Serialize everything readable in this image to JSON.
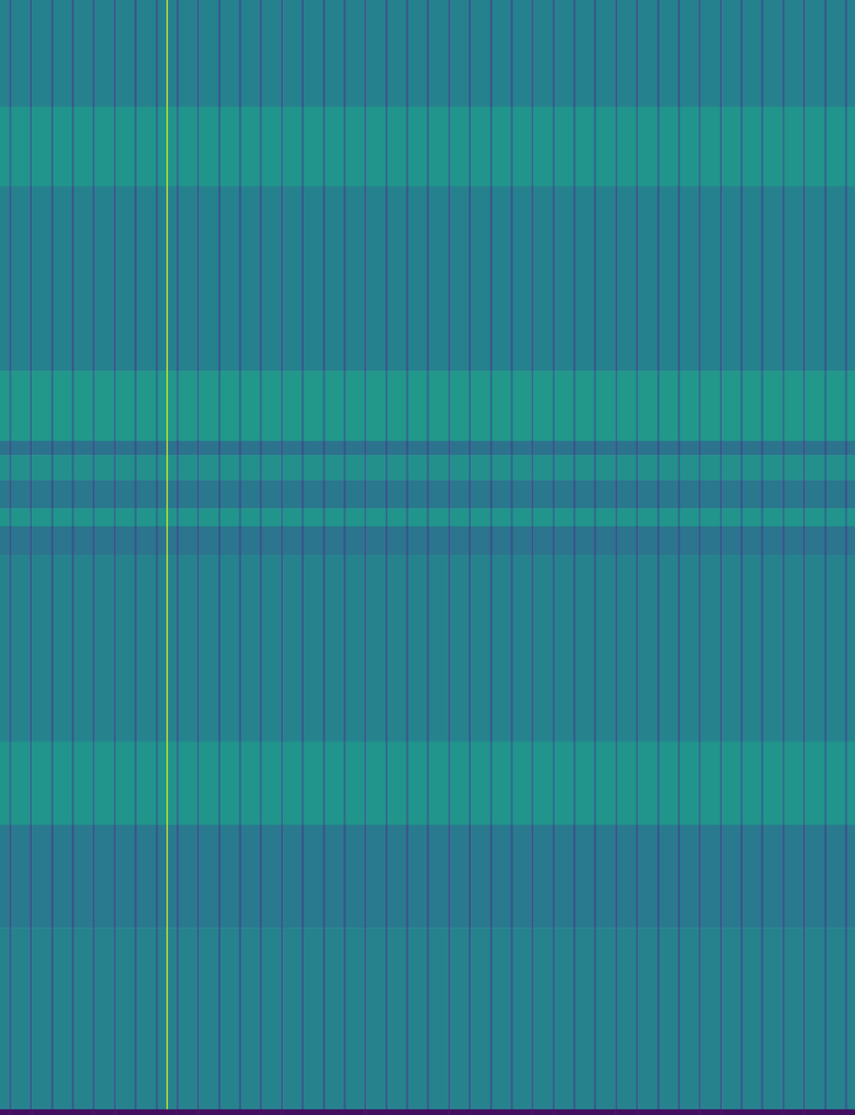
{
  "chart_data": {
    "type": "heatmap",
    "color": "viridis",
    "tick_labels": false,
    "grid": false,
    "xlim": [
      0,
      1202
    ],
    "ylim": [
      0,
      1568
    ],
    "zlim": [
      0,
      100
    ],
    "x_bins": [
      0,
      13,
      16,
      42,
      45,
      72,
      75,
      101,
      104,
      130,
      133,
      160,
      163,
      189,
      192,
      219,
      222,
      234,
      236,
      248,
      251,
      277,
      280,
      307,
      310,
      336,
      339,
      365,
      368,
      395,
      398,
      424,
      427,
      454,
      457,
      483,
      486,
      512,
      515,
      542,
      545,
      571,
      574,
      600,
      603,
      630,
      633,
      659,
      662,
      689,
      692,
      718,
      721,
      747,
      750,
      777,
      780,
      806,
      809,
      835,
      838,
      865,
      868,
      894,
      897,
      924,
      927,
      953,
      956,
      982,
      985,
      1012,
      1015,
      1041,
      1044,
      1070,
      1073,
      1100,
      1103,
      1129,
      1132,
      1159,
      1162,
      1188,
      1191,
      1202
    ],
    "y_bins": [
      0,
      150,
      262,
      522,
      620,
      640,
      675,
      715,
      740,
      780,
      1043,
      1160,
      1305,
      1560,
      1568
    ],
    "cells": [
      [
        44,
        28,
        44,
        28,
        44,
        28,
        44,
        28,
        44,
        28,
        44,
        28,
        44,
        28,
        44,
        28,
        44,
        90,
        44,
        28,
        44,
        28,
        44,
        28,
        44,
        28,
        44,
        28,
        44,
        28,
        44,
        28,
        44,
        28,
        44,
        28,
        44,
        28,
        44,
        28,
        44,
        28,
        44,
        28,
        44,
        28,
        44,
        28,
        44,
        28,
        44,
        28,
        44,
        28,
        44,
        28,
        44,
        28,
        44,
        28,
        44,
        28,
        44,
        28,
        44,
        28,
        44,
        28,
        44,
        28,
        44,
        28,
        44,
        28,
        44,
        28,
        44,
        28,
        44,
        28,
        44,
        28,
        44,
        28,
        44
      ],
      [
        52,
        34,
        52,
        34,
        52,
        34,
        52,
        34,
        52,
        34,
        52,
        34,
        52,
        34,
        52,
        34,
        52,
        90,
        52,
        34,
        52,
        34,
        52,
        34,
        52,
        34,
        52,
        34,
        52,
        34,
        52,
        34,
        52,
        34,
        52,
        34,
        52,
        34,
        52,
        34,
        52,
        34,
        52,
        34,
        52,
        34,
        52,
        34,
        52,
        34,
        52,
        34,
        52,
        34,
        52,
        34,
        52,
        34,
        52,
        34,
        52,
        34,
        52,
        34,
        52,
        34,
        52,
        34,
        52,
        34,
        52,
        34,
        52,
        34,
        52,
        34,
        52,
        34,
        52,
        34,
        52,
        34,
        52,
        34,
        52
      ],
      [
        44,
        28,
        44,
        28,
        44,
        28,
        44,
        28,
        44,
        28,
        44,
        28,
        44,
        28,
        44,
        28,
        44,
        90,
        44,
        28,
        44,
        28,
        44,
        28,
        44,
        28,
        44,
        28,
        44,
        28,
        44,
        28,
        44,
        28,
        44,
        28,
        44,
        28,
        44,
        28,
        44,
        28,
        44,
        28,
        44,
        28,
        44,
        28,
        44,
        28,
        44,
        28,
        44,
        28,
        44,
        28,
        44,
        28,
        44,
        28,
        44,
        28,
        44,
        28,
        44,
        28,
        44,
        28,
        44,
        28,
        44,
        28,
        44,
        28,
        44,
        28,
        44,
        28,
        44,
        28,
        44,
        28,
        44,
        28,
        44
      ],
      [
        53,
        36,
        53,
        36,
        53,
        36,
        53,
        36,
        53,
        36,
        53,
        36,
        53,
        36,
        53,
        36,
        53,
        90,
        53,
        36,
        53,
        36,
        53,
        36,
        53,
        36,
        53,
        36,
        53,
        36,
        53,
        36,
        53,
        36,
        53,
        36,
        53,
        36,
        53,
        36,
        53,
        36,
        53,
        36,
        53,
        36,
        53,
        36,
        53,
        36,
        53,
        36,
        53,
        36,
        53,
        36,
        53,
        36,
        53,
        36,
        53,
        36,
        53,
        36,
        53,
        36,
        53,
        36,
        53,
        36,
        53,
        36,
        53,
        36,
        53,
        36,
        53,
        36,
        53,
        36,
        53,
        36,
        53,
        36,
        53
      ],
      [
        38,
        26,
        38,
        26,
        38,
        26,
        38,
        26,
        38,
        26,
        38,
        26,
        38,
        26,
        38,
        26,
        38,
        88,
        38,
        26,
        38,
        26,
        38,
        26,
        38,
        26,
        38,
        26,
        38,
        26,
        38,
        26,
        38,
        26,
        38,
        26,
        38,
        26,
        38,
        26,
        38,
        26,
        38,
        26,
        38,
        26,
        38,
        26,
        38,
        26,
        38,
        26,
        38,
        26,
        38,
        26,
        38,
        26,
        38,
        26,
        38,
        26,
        38,
        26,
        38,
        26,
        38,
        26,
        38,
        26,
        38,
        26,
        38,
        26,
        38,
        26,
        38,
        26,
        38,
        26,
        38,
        26,
        38,
        26,
        38
      ],
      [
        50,
        34,
        50,
        34,
        50,
        34,
        50,
        34,
        50,
        34,
        50,
        34,
        50,
        34,
        50,
        34,
        50,
        90,
        50,
        34,
        50,
        34,
        50,
        34,
        50,
        34,
        50,
        34,
        50,
        34,
        50,
        34,
        50,
        34,
        50,
        34,
        50,
        34,
        50,
        34,
        50,
        34,
        50,
        34,
        50,
        34,
        50,
        34,
        50,
        34,
        50,
        34,
        50,
        34,
        50,
        34,
        50,
        34,
        50,
        34,
        50,
        34,
        50,
        34,
        50,
        34,
        50,
        34,
        50,
        34,
        50,
        34,
        50,
        34,
        50,
        34,
        50,
        34,
        50,
        34,
        50,
        34,
        50,
        34,
        50
      ],
      [
        40,
        27,
        40,
        27,
        40,
        27,
        40,
        27,
        40,
        27,
        40,
        27,
        40,
        27,
        40,
        27,
        40,
        88,
        40,
        27,
        40,
        27,
        40,
        27,
        40,
        27,
        40,
        27,
        40,
        27,
        40,
        27,
        40,
        27,
        40,
        27,
        40,
        27,
        40,
        27,
        40,
        27,
        40,
        27,
        40,
        27,
        40,
        27,
        40,
        27,
        40,
        27,
        40,
        27,
        40,
        27,
        40,
        27,
        40,
        27,
        40,
        27,
        40,
        27,
        40,
        27,
        40,
        27,
        40,
        27,
        40,
        27,
        40,
        27,
        40,
        27,
        40,
        27,
        40,
        27,
        40,
        27,
        40,
        27,
        40
      ],
      [
        52,
        36,
        52,
        36,
        52,
        36,
        52,
        36,
        52,
        36,
        52,
        36,
        52,
        36,
        52,
        36,
        52,
        90,
        52,
        36,
        52,
        36,
        52,
        36,
        52,
        36,
        52,
        36,
        52,
        36,
        52,
        36,
        52,
        36,
        52,
        36,
        52,
        36,
        52,
        36,
        52,
        36,
        52,
        36,
        52,
        36,
        52,
        36,
        52,
        36,
        52,
        36,
        52,
        36,
        52,
        36,
        52,
        36,
        52,
        36,
        52,
        36,
        52,
        36,
        52,
        36,
        52,
        36,
        52,
        36,
        52,
        36,
        52,
        36,
        52,
        36,
        52,
        36,
        52,
        36,
        52,
        36,
        52,
        36,
        52
      ],
      [
        39,
        27,
        39,
        27,
        39,
        27,
        39,
        27,
        39,
        27,
        39,
        27,
        39,
        27,
        39,
        27,
        39,
        88,
        39,
        27,
        39,
        27,
        39,
        27,
        39,
        27,
        39,
        27,
        39,
        27,
        39,
        27,
        39,
        27,
        39,
        27,
        39,
        27,
        39,
        27,
        39,
        27,
        39,
        27,
        39,
        27,
        39,
        27,
        39,
        27,
        39,
        27,
        39,
        27,
        39,
        27,
        39,
        27,
        39,
        27,
        39,
        27,
        39,
        27,
        39,
        27,
        39,
        27,
        39,
        27,
        39,
        27,
        39,
        27,
        39,
        27,
        39,
        27,
        39,
        27,
        39,
        27,
        39,
        27,
        39
      ],
      [
        45,
        29,
        45,
        29,
        45,
        29,
        45,
        29,
        45,
        29,
        45,
        29,
        45,
        29,
        45,
        29,
        45,
        90,
        45,
        29,
        45,
        29,
        45,
        29,
        45,
        29,
        45,
        29,
        45,
        29,
        45,
        29,
        45,
        29,
        45,
        29,
        45,
        29,
        45,
        29,
        45,
        29,
        45,
        29,
        45,
        29,
        45,
        29,
        45,
        29,
        45,
        29,
        45,
        29,
        45,
        29,
        45,
        29,
        45,
        29,
        45,
        29,
        45,
        29,
        45,
        29,
        45,
        29,
        45,
        29,
        45,
        29,
        45,
        29,
        45,
        29,
        45,
        29,
        45,
        29,
        45,
        29,
        45,
        29,
        45
      ],
      [
        52,
        35,
        52,
        35,
        52,
        35,
        52,
        35,
        52,
        35,
        52,
        35,
        52,
        35,
        52,
        35,
        52,
        90,
        52,
        35,
        52,
        35,
        52,
        35,
        52,
        35,
        52,
        35,
        52,
        35,
        52,
        35,
        52,
        35,
        52,
        35,
        52,
        35,
        52,
        35,
        52,
        35,
        52,
        35,
        52,
        35,
        52,
        35,
        52,
        35,
        52,
        35,
        52,
        35,
        52,
        35,
        52,
        35,
        52,
        35,
        52,
        35,
        52,
        35,
        52,
        35,
        52,
        35,
        52,
        35,
        52,
        35,
        52,
        35,
        52,
        35,
        52,
        35,
        52,
        35,
        52,
        35,
        52,
        35,
        52
      ],
      [
        41,
        27,
        41,
        27,
        41,
        27,
        41,
        27,
        41,
        27,
        41,
        27,
        41,
        27,
        41,
        27,
        41,
        88,
        41,
        27,
        41,
        27,
        41,
        27,
        41,
        27,
        41,
        27,
        41,
        27,
        41,
        27,
        41,
        27,
        41,
        27,
        41,
        27,
        41,
        27,
        41,
        27,
        41,
        27,
        41,
        27,
        41,
        27,
        41,
        27,
        41,
        27,
        41,
        27,
        41,
        27,
        41,
        27,
        41,
        27,
        41,
        27,
        41,
        27,
        41,
        27,
        41,
        27,
        41,
        27,
        41,
        27,
        41,
        27,
        41,
        27,
        41,
        27,
        41,
        27,
        41,
        27,
        41,
        27,
        41
      ],
      [
        45,
        29,
        45,
        29,
        45,
        29,
        45,
        29,
        45,
        29,
        45,
        29,
        45,
        29,
        45,
        29,
        45,
        90,
        45,
        29,
        45,
        29,
        45,
        29,
        45,
        29,
        45,
        29,
        45,
        29,
        45,
        29,
        45,
        29,
        45,
        29,
        45,
        29,
        45,
        29,
        45,
        29,
        45,
        29,
        45,
        29,
        45,
        29,
        45,
        29,
        45,
        29,
        45,
        29,
        45,
        29,
        45,
        29,
        45,
        29,
        45,
        29,
        45,
        29,
        45,
        29,
        45,
        29,
        45,
        29,
        45,
        29,
        45,
        29,
        45,
        29,
        45,
        29,
        45,
        29,
        45,
        29,
        45,
        29,
        45
      ],
      [
        4,
        4,
        4,
        4,
        4,
        4,
        4,
        4,
        4,
        4,
        4,
        4,
        4,
        4,
        4,
        4,
        4,
        4,
        4,
        4,
        4,
        4,
        4,
        4,
        4,
        4,
        4,
        4,
        4,
        4,
        4,
        4,
        4,
        4,
        4,
        4,
        4,
        4,
        4,
        4,
        4,
        4,
        4,
        4,
        4,
        4,
        4,
        4,
        4,
        4,
        4,
        4,
        4,
        4,
        4,
        4,
        4,
        4,
        4,
        4,
        4,
        4,
        4,
        4,
        4,
        4,
        4,
        4,
        4,
        4,
        4,
        4,
        4,
        4,
        4,
        4,
        4,
        4,
        4,
        4,
        4,
        4,
        4,
        4,
        4
      ]
    ]
  }
}
